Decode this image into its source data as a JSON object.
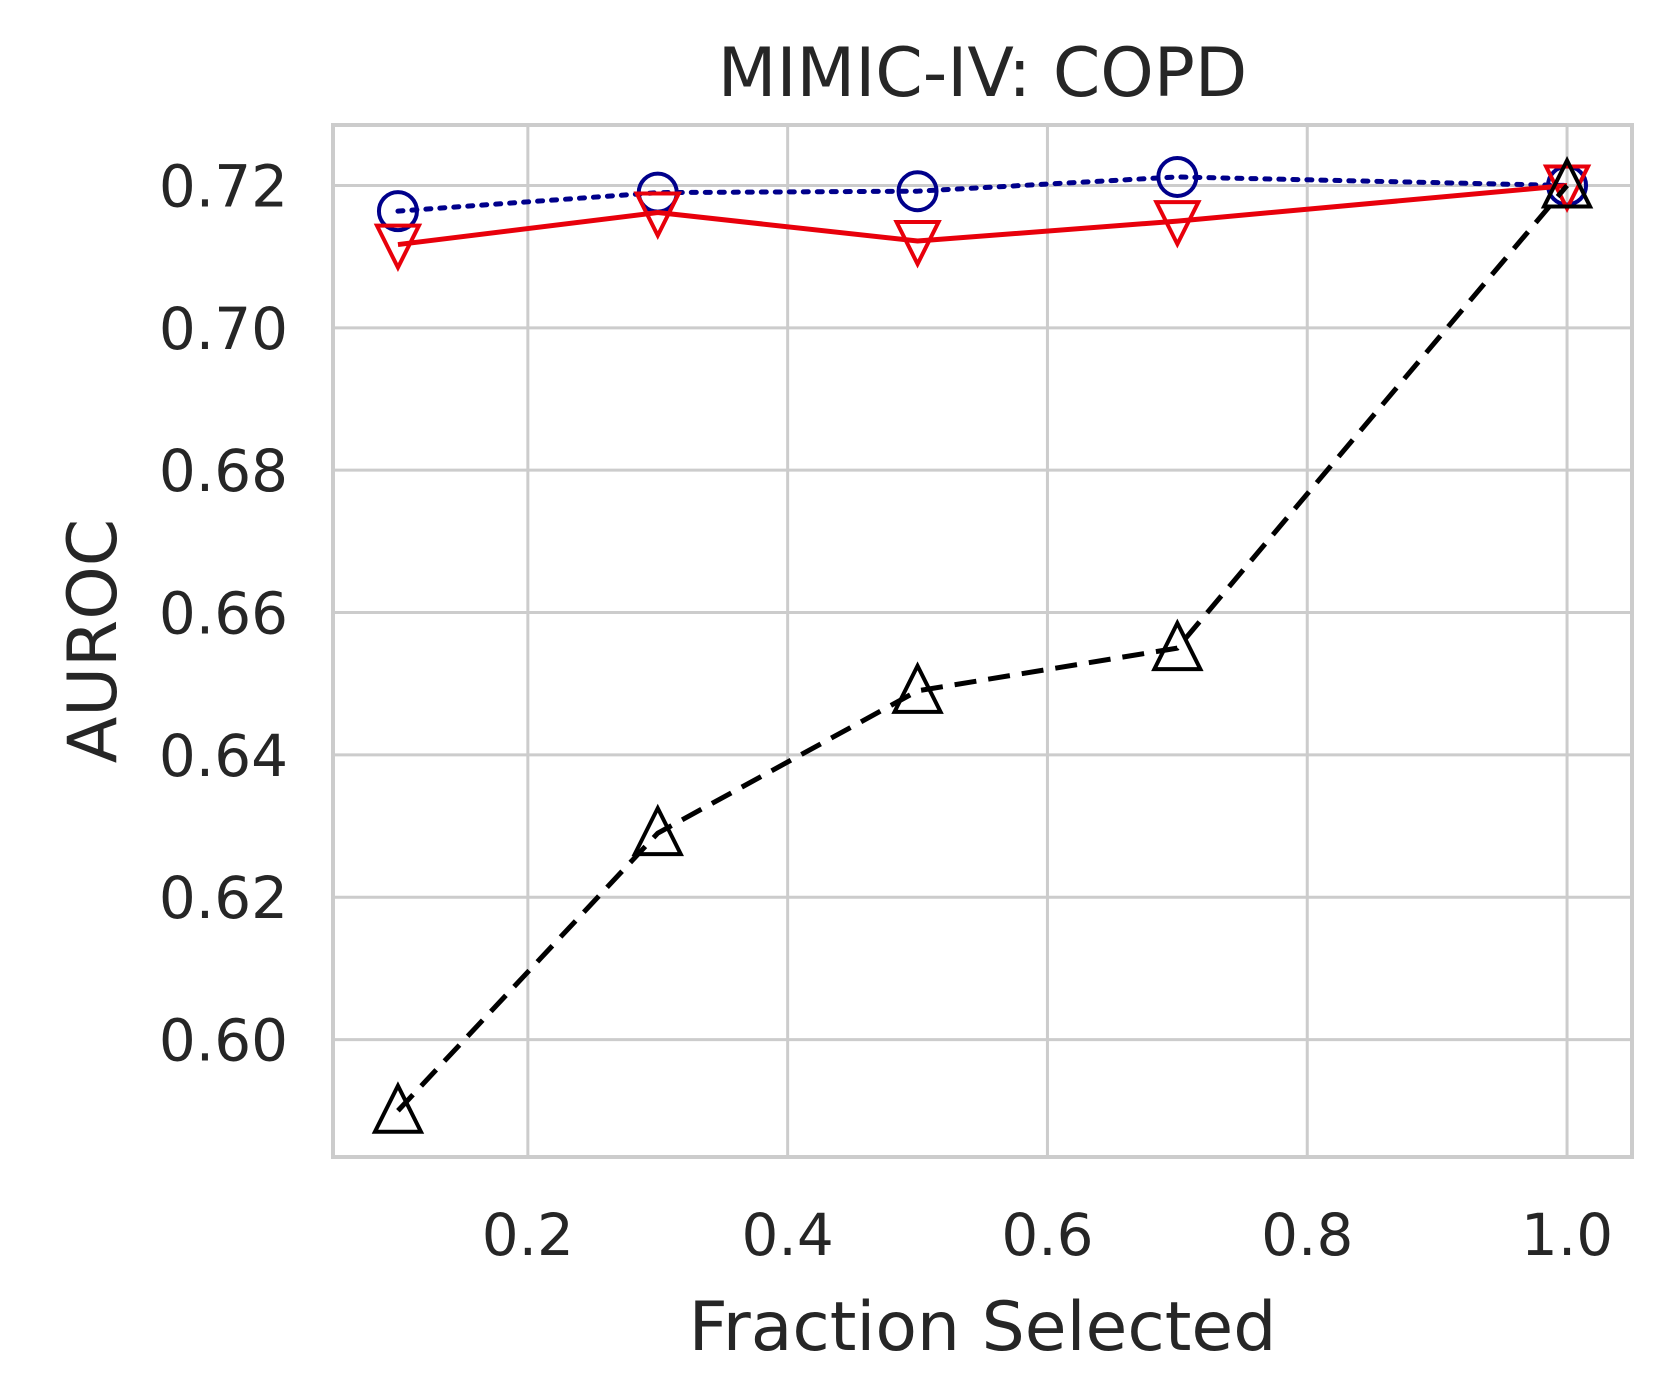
{
  "chart_data": {
    "type": "line",
    "title": "MIMIC-IV: COPD",
    "xlabel": "Fraction Selected",
    "ylabel": "AUROC",
    "xlim": [
      0.05,
      1.05
    ],
    "ylim": [
      0.5835,
      0.7285
    ],
    "xticks": [
      0.2,
      0.4,
      0.6,
      0.8,
      1.0
    ],
    "xtick_labels": [
      "0.2",
      "0.4",
      "0.6",
      "0.8",
      "1.0"
    ],
    "yticks": [
      0.6,
      0.62,
      0.64,
      0.66,
      0.68,
      0.7,
      0.72
    ],
    "ytick_labels": [
      "0.60",
      "0.62",
      "0.64",
      "0.66",
      "0.68",
      "0.70",
      "0.72"
    ],
    "grid": true,
    "legend": null,
    "x": [
      0.1,
      0.3,
      0.5,
      0.7,
      1.0
    ],
    "series": [
      {
        "values": [
          0.7164,
          0.719,
          0.7192,
          0.7212,
          0.72
        ],
        "color": "#00008b",
        "line_style": "dotted",
        "marker": "circle"
      },
      {
        "values": [
          0.7117,
          0.7162,
          0.7122,
          0.715,
          0.72
        ],
        "color": "#e8000b",
        "line_style": "solid",
        "marker": "triangle-down"
      },
      {
        "values": [
          0.59,
          0.629,
          0.649,
          0.655,
          0.72
        ],
        "color": "#000000",
        "line_style": "dashed",
        "marker": "triangle-up"
      }
    ]
  }
}
